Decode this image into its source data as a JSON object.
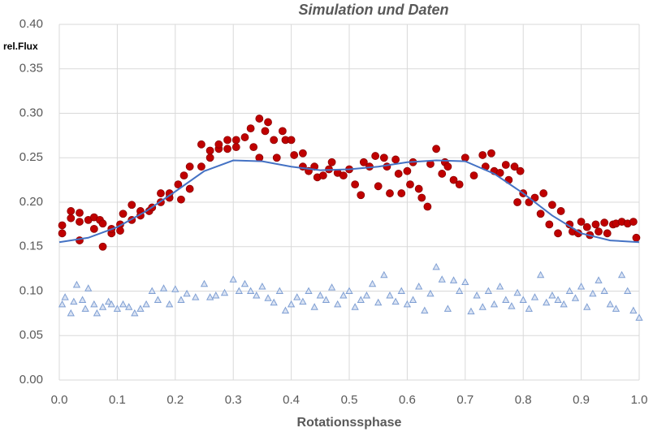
{
  "chart_data": {
    "type": "scatter",
    "title": "Simulation und Daten",
    "y_label": "rel.Flux",
    "x_label": "Rotationssphase",
    "xlim": [
      0,
      1
    ],
    "ylim": [
      0,
      0.4
    ],
    "xticks": [
      {
        "value": 0,
        "label": "0.0"
      },
      0.1,
      0.2,
      0.3,
      0.4,
      0.5,
      0.6,
      0.7,
      0.8,
      0.9,
      {
        "value": 1,
        "label": "1.0"
      }
    ],
    "yticks": [
      {
        "value": 0,
        "label": "0.00"
      },
      {
        "value": 0.05,
        "label": "0.05"
      },
      {
        "value": 0.1,
        "label": "0.10"
      },
      {
        "value": 0.15,
        "label": "0.15"
      },
      {
        "value": 0.2,
        "label": "0.20"
      },
      {
        "value": 0.25,
        "label": "0.25"
      },
      {
        "value": 0.3,
        "label": "0.30"
      },
      {
        "value": 0.35,
        "label": "0.35"
      },
      {
        "value": 0.4,
        "label": "0.40"
      }
    ],
    "grid": true,
    "series": [
      {
        "marker": "circle",
        "color": "#c00000",
        "x": [
          0.005,
          0.005,
          0.02,
          0.02,
          0.035,
          0.035,
          0.035,
          0.05,
          0.06,
          0.06,
          0.07,
          0.075,
          0.075,
          0.09,
          0.09,
          0.105,
          0.105,
          0.11,
          0.125,
          0.125,
          0.14,
          0.14,
          0.155,
          0.16,
          0.175,
          0.175,
          0.19,
          0.19,
          0.205,
          0.21,
          0.215,
          0.225,
          0.225,
          0.245,
          0.245,
          0.26,
          0.26,
          0.275,
          0.275,
          0.29,
          0.29,
          0.305,
          0.305,
          0.32,
          0.33,
          0.335,
          0.345,
          0.345,
          0.355,
          0.36,
          0.37,
          0.375,
          0.385,
          0.39,
          0.4,
          0.405,
          0.42,
          0.42,
          0.43,
          0.44,
          0.445,
          0.455,
          0.465,
          0.47,
          0.48,
          0.49,
          0.5,
          0.51,
          0.52,
          0.525,
          0.535,
          0.545,
          0.55,
          0.56,
          0.565,
          0.57,
          0.58,
          0.585,
          0.59,
          0.6,
          0.605,
          0.61,
          0.62,
          0.625,
          0.635,
          0.64,
          0.65,
          0.66,
          0.665,
          0.67,
          0.68,
          0.69,
          0.7,
          0.715,
          0.73,
          0.735,
          0.745,
          0.75,
          0.76,
          0.77,
          0.775,
          0.785,
          0.79,
          0.795,
          0.8,
          0.81,
          0.82,
          0.83,
          0.835,
          0.845,
          0.85,
          0.86,
          0.865,
          0.88,
          0.885,
          0.895,
          0.9,
          0.91,
          0.915,
          0.925,
          0.93,
          0.94,
          0.945,
          0.955,
          0.96,
          0.97,
          0.98,
          0.99,
          0.995
        ],
        "values": [
          0.174,
          0.165,
          0.19,
          0.182,
          0.188,
          0.178,
          0.157,
          0.18,
          0.183,
          0.17,
          0.18,
          0.176,
          0.15,
          0.165,
          0.17,
          0.175,
          0.168,
          0.187,
          0.18,
          0.197,
          0.19,
          0.185,
          0.19,
          0.194,
          0.2,
          0.21,
          0.205,
          0.21,
          0.22,
          0.203,
          0.23,
          0.215,
          0.24,
          0.24,
          0.265,
          0.25,
          0.258,
          0.26,
          0.265,
          0.26,
          0.27,
          0.262,
          0.27,
          0.273,
          0.283,
          0.262,
          0.294,
          0.25,
          0.28,
          0.29,
          0.27,
          0.25,
          0.28,
          0.27,
          0.27,
          0.253,
          0.255,
          0.24,
          0.235,
          0.24,
          0.228,
          0.23,
          0.237,
          0.245,
          0.233,
          0.23,
          0.237,
          0.22,
          0.208,
          0.245,
          0.24,
          0.252,
          0.218,
          0.25,
          0.24,
          0.21,
          0.248,
          0.232,
          0.21,
          0.235,
          0.22,
          0.245,
          0.215,
          0.205,
          0.195,
          0.243,
          0.26,
          0.232,
          0.245,
          0.24,
          0.225,
          0.22,
          0.25,
          0.23,
          0.253,
          0.24,
          0.255,
          0.235,
          0.233,
          0.242,
          0.225,
          0.24,
          0.2,
          0.235,
          0.21,
          0.2,
          0.205,
          0.187,
          0.21,
          0.175,
          0.197,
          0.165,
          0.19,
          0.175,
          0.167,
          0.165,
          0.178,
          0.172,
          0.163,
          0.175,
          0.167,
          0.177,
          0.165,
          0.175,
          0.176,
          0.178,
          0.176,
          0.178,
          0.16
        ]
      },
      {
        "marker": "line",
        "color": "#4472c4",
        "x": [
          0,
          0.05,
          0.1,
          0.15,
          0.2,
          0.25,
          0.3,
          0.35,
          0.4,
          0.45,
          0.5,
          0.55,
          0.6,
          0.65,
          0.7,
          0.75,
          0.8,
          0.85,
          0.9,
          0.95,
          1
        ],
        "values": [
          0.155,
          0.16,
          0.172,
          0.19,
          0.212,
          0.235,
          0.247,
          0.246,
          0.24,
          0.236,
          0.237,
          0.24,
          0.245,
          0.247,
          0.246,
          0.232,
          0.21,
          0.185,
          0.165,
          0.157,
          0.155
        ]
      },
      {
        "marker": "triangle",
        "color": "#7f9fd3",
        "x": [
          0.005,
          0.01,
          0.02,
          0.025,
          0.03,
          0.04,
          0.045,
          0.05,
          0.06,
          0.065,
          0.075,
          0.085,
          0.09,
          0.1,
          0.11,
          0.12,
          0.13,
          0.14,
          0.15,
          0.16,
          0.17,
          0.18,
          0.19,
          0.2,
          0.21,
          0.22,
          0.235,
          0.25,
          0.26,
          0.27,
          0.285,
          0.3,
          0.31,
          0.32,
          0.33,
          0.34,
          0.35,
          0.36,
          0.37,
          0.38,
          0.39,
          0.4,
          0.41,
          0.42,
          0.43,
          0.44,
          0.45,
          0.46,
          0.47,
          0.48,
          0.49,
          0.5,
          0.51,
          0.52,
          0.53,
          0.54,
          0.55,
          0.56,
          0.57,
          0.58,
          0.59,
          0.6,
          0.61,
          0.62,
          0.63,
          0.64,
          0.65,
          0.66,
          0.67,
          0.68,
          0.69,
          0.7,
          0.71,
          0.72,
          0.73,
          0.74,
          0.75,
          0.76,
          0.77,
          0.78,
          0.79,
          0.8,
          0.81,
          0.82,
          0.83,
          0.84,
          0.85,
          0.86,
          0.87,
          0.88,
          0.89,
          0.9,
          0.91,
          0.92,
          0.93,
          0.94,
          0.95,
          0.96,
          0.97,
          0.98,
          0.99,
          1
        ],
        "values": [
          0.085,
          0.093,
          0.075,
          0.088,
          0.107,
          0.09,
          0.08,
          0.103,
          0.085,
          0.075,
          0.082,
          0.088,
          0.085,
          0.08,
          0.085,
          0.082,
          0.075,
          0.08,
          0.085,
          0.1,
          0.09,
          0.103,
          0.085,
          0.102,
          0.09,
          0.097,
          0.093,
          0.108,
          0.093,
          0.095,
          0.098,
          0.113,
          0.1,
          0.108,
          0.1,
          0.095,
          0.105,
          0.092,
          0.087,
          0.1,
          0.078,
          0.085,
          0.093,
          0.088,
          0.1,
          0.082,
          0.095,
          0.09,
          0.104,
          0.085,
          0.095,
          0.1,
          0.082,
          0.09,
          0.095,
          0.108,
          0.087,
          0.118,
          0.095,
          0.088,
          0.1,
          0.085,
          0.09,
          0.105,
          0.078,
          0.097,
          0.127,
          0.113,
          0.08,
          0.112,
          0.1,
          0.11,
          0.077,
          0.095,
          0.082,
          0.1,
          0.085,
          0.105,
          0.09,
          0.083,
          0.098,
          0.09,
          0.08,
          0.093,
          0.118,
          0.087,
          0.095,
          0.09,
          0.085,
          0.1,
          0.092,
          0.105,
          0.082,
          0.097,
          0.112,
          0.1,
          0.085,
          0.08,
          0.118,
          0.1,
          0.078,
          0.07
        ]
      }
    ]
  }
}
